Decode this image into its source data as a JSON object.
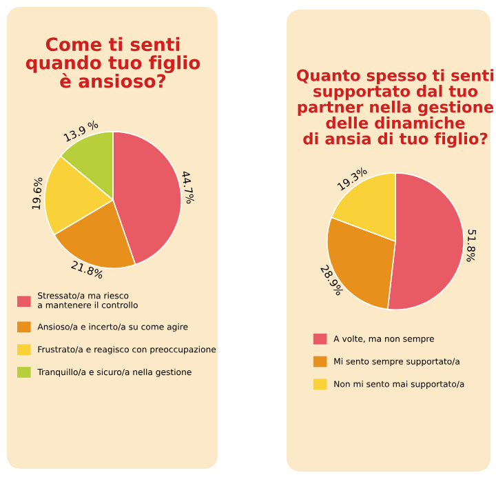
{
  "chart_data": [
    {
      "type": "pie",
      "title": "Come ti senti\nquando tuo figlio\nè ansioso?",
      "categories": [
        "Stressato/a ma riesco\na mantenere il controllo",
        "Ansioso/a e incerto/a su come agire",
        "Frustrato/a e reagisco con preoccupazione",
        "Tranquillo/a e sicuro/a nella gestione"
      ],
      "values": [
        44.7,
        21.8,
        19.6,
        13.9
      ],
      "value_labels": [
        "44.7%",
        "21.8%",
        "19.6%",
        "13.9 %"
      ],
      "colors": [
        "#e85a64",
        "#e8901c",
        "#f9d23a",
        "#b6cf3a"
      ],
      "legend": "bottom"
    },
    {
      "type": "pie",
      "title": "Quanto spesso ti senti\nsupportato dal tuo\npartner nella gestione\ndelle dinamiche\ndi ansia di tuo figlio?",
      "categories": [
        "A volte, ma non sempre",
        "Mi sento sempre supportato/a",
        "Non mi sento mai supportato/a"
      ],
      "values": [
        51.8,
        28.9,
        19.3
      ],
      "value_labels": [
        "51.8%",
        "28.9%",
        "19.3%"
      ],
      "colors": [
        "#e85a64",
        "#e8901c",
        "#f9d23a"
      ],
      "legend": "bottom"
    }
  ]
}
